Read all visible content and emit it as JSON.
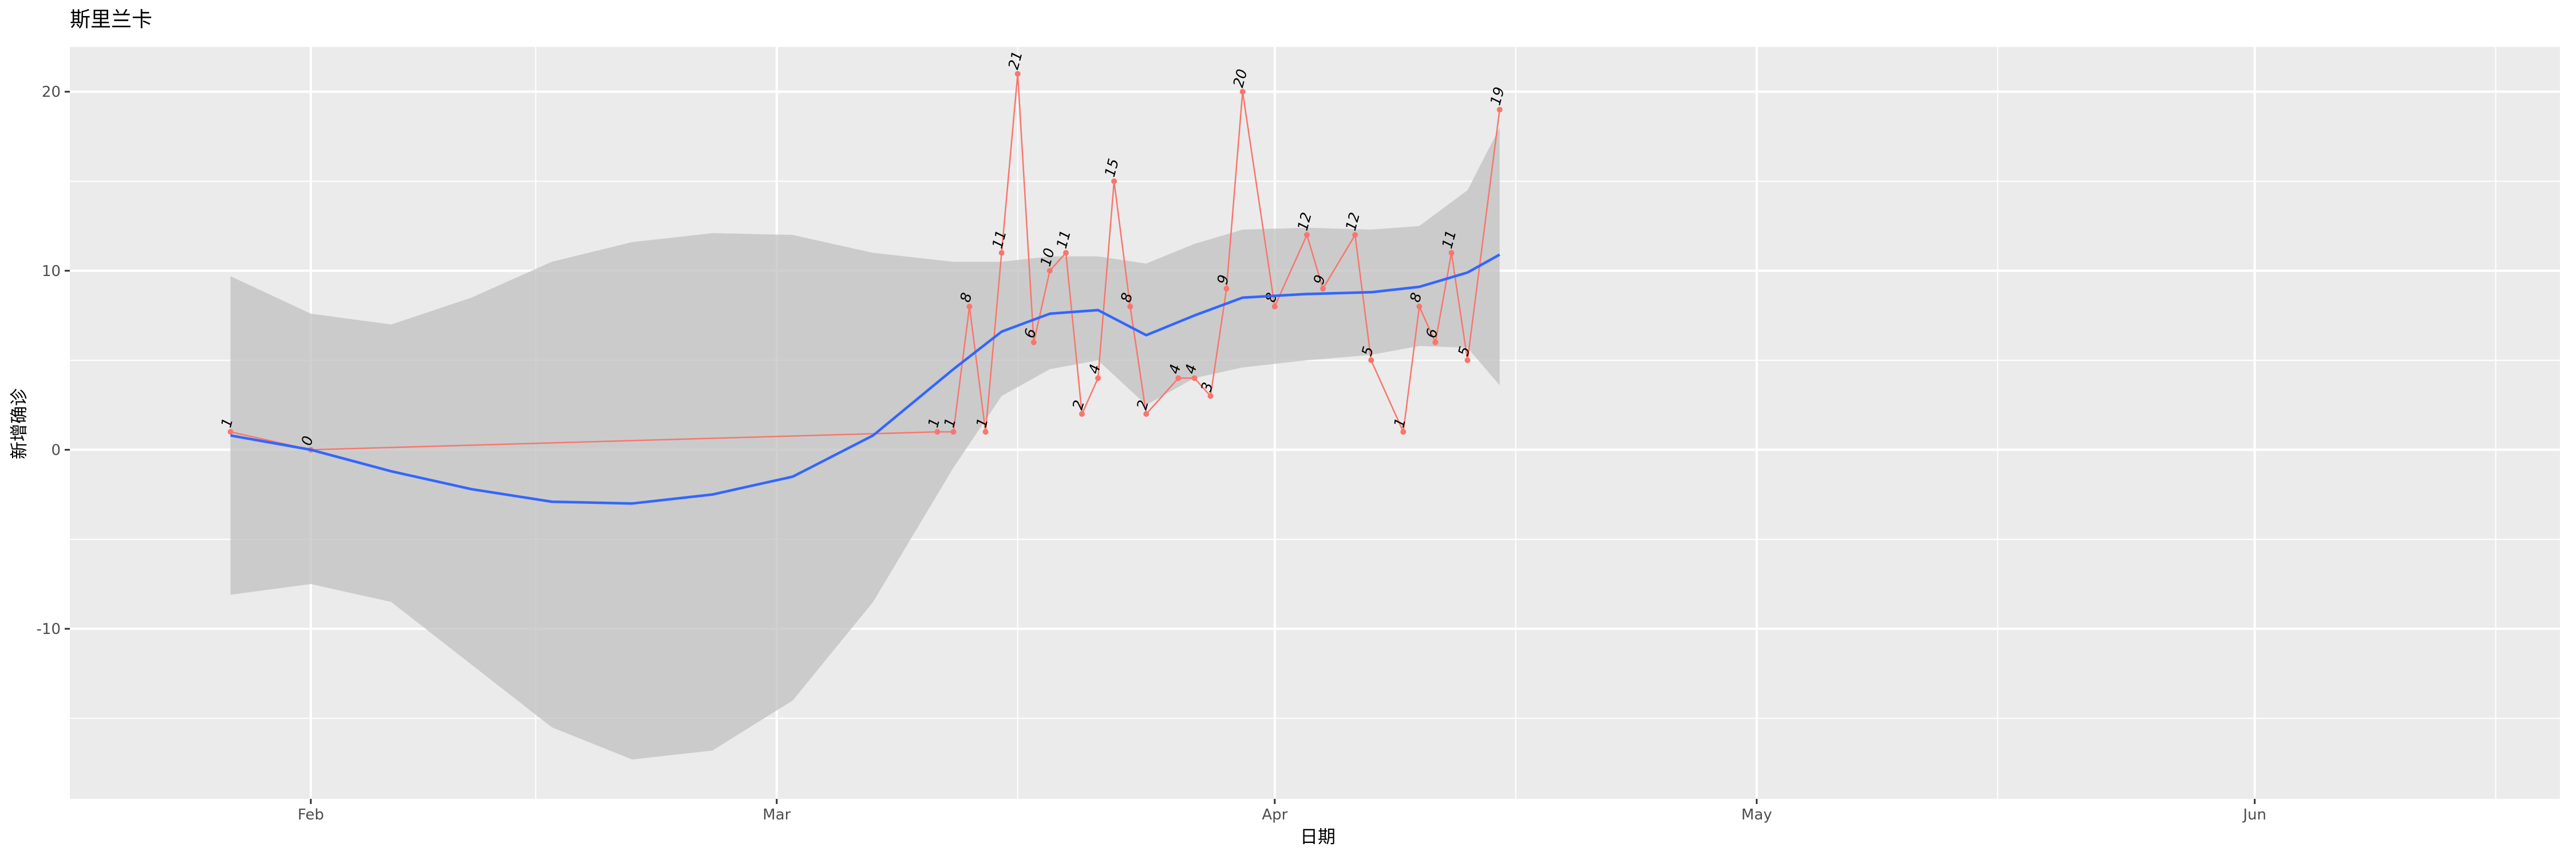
{
  "chart_data": {
    "type": "line",
    "title": "斯里兰卡",
    "xlabel": "日期",
    "ylabel": "新增确诊",
    "x_axis_type": "date",
    "xlim": [
      "2020-01-17",
      "2020-06-20"
    ],
    "ylim": [
      -19.5,
      22.5
    ],
    "x_ticks": [
      {
        "date": "2020-02-01",
        "label": "Feb"
      },
      {
        "date": "2020-03-01",
        "label": "Mar"
      },
      {
        "date": "2020-04-01",
        "label": "Apr"
      },
      {
        "date": "2020-05-01",
        "label": "May"
      },
      {
        "date": "2020-06-01",
        "label": "Jun"
      }
    ],
    "x_minor_grid": [
      "2020-01-16",
      "2020-02-15",
      "2020-03-16",
      "2020-04-16",
      "2020-05-16",
      "2020-06-16"
    ],
    "y_ticks": [
      -10,
      0,
      10,
      20
    ],
    "y_minor_grid": [
      -15,
      -5,
      5,
      15
    ],
    "grid": true,
    "background": "#ebebeb",
    "colors": {
      "points_line": "#f8766d",
      "smooth": "#3366ff",
      "ribbon": "#c0c0c0",
      "grid": "#ffffff"
    },
    "series": [
      {
        "values": [
          {
            "date": "2020-01-27",
            "y": 1
          },
          {
            "date": "2020-02-01",
            "y": 0
          },
          {
            "date": "2020-03-11",
            "y": 1
          },
          {
            "date": "2020-03-12",
            "y": 1
          },
          {
            "date": "2020-03-13",
            "y": 8
          },
          {
            "date": "2020-03-14",
            "y": 1
          },
          {
            "date": "2020-03-15",
            "y": 11
          },
          {
            "date": "2020-03-16",
            "y": 21
          },
          {
            "date": "2020-03-17",
            "y": 6
          },
          {
            "date": "2020-03-18",
            "y": 10
          },
          {
            "date": "2020-03-19",
            "y": 11
          },
          {
            "date": "2020-03-20",
            "y": 2
          },
          {
            "date": "2020-03-21",
            "y": 4
          },
          {
            "date": "2020-03-22",
            "y": 15
          },
          {
            "date": "2020-03-23",
            "y": 8
          },
          {
            "date": "2020-03-24",
            "y": 2
          },
          {
            "date": "2020-03-26",
            "y": 4
          },
          {
            "date": "2020-03-27",
            "y": 4
          },
          {
            "date": "2020-03-28",
            "y": 3
          },
          {
            "date": "2020-03-29",
            "y": 9
          },
          {
            "date": "2020-03-30",
            "y": 20
          },
          {
            "date": "2020-04-01",
            "y": 8
          },
          {
            "date": "2020-04-03",
            "y": 12
          },
          {
            "date": "2020-04-04",
            "y": 9
          },
          {
            "date": "2020-04-06",
            "y": 12
          },
          {
            "date": "2020-04-07",
            "y": 5
          },
          {
            "date": "2020-04-09",
            "y": 1
          },
          {
            "date": "2020-04-10",
            "y": 8
          },
          {
            "date": "2020-04-11",
            "y": 6
          },
          {
            "date": "2020-04-12",
            "y": 11
          },
          {
            "date": "2020-04-13",
            "y": 5
          },
          {
            "date": "2020-04-15",
            "y": 19
          }
        ]
      }
    ],
    "smooth_fit": [
      {
        "date": "2020-01-27",
        "y": 0.8,
        "lo": -8.1,
        "hi": 9.7
      },
      {
        "date": "2020-02-01",
        "y": 0.0,
        "lo": -7.5,
        "hi": 7.6
      },
      {
        "date": "2020-02-06",
        "y": -1.2,
        "lo": -8.5,
        "hi": 7.0
      },
      {
        "date": "2020-02-11",
        "y": -2.2,
        "lo": -12.0,
        "hi": 8.5
      },
      {
        "date": "2020-02-16",
        "y": -2.9,
        "lo": -15.5,
        "hi": 10.5
      },
      {
        "date": "2020-02-21",
        "y": -3.0,
        "lo": -17.3,
        "hi": 11.6
      },
      {
        "date": "2020-02-26",
        "y": -2.5,
        "lo": -16.8,
        "hi": 12.1
      },
      {
        "date": "2020-03-02",
        "y": -1.5,
        "lo": -14.0,
        "hi": 12.0
      },
      {
        "date": "2020-03-07",
        "y": 0.8,
        "lo": -8.5,
        "hi": 11.0
      },
      {
        "date": "2020-03-12",
        "y": 4.5,
        "lo": -1.0,
        "hi": 10.5
      },
      {
        "date": "2020-03-15",
        "y": 6.6,
        "lo": 3.0,
        "hi": 10.5
      },
      {
        "date": "2020-03-18",
        "y": 7.6,
        "lo": 4.5,
        "hi": 10.8
      },
      {
        "date": "2020-03-21",
        "y": 7.8,
        "lo": 5.0,
        "hi": 10.8
      },
      {
        "date": "2020-03-24",
        "y": 6.4,
        "lo": 2.5,
        "hi": 10.4
      },
      {
        "date": "2020-03-27",
        "y": 7.5,
        "lo": 4.0,
        "hi": 11.5
      },
      {
        "date": "2020-03-30",
        "y": 8.5,
        "lo": 4.6,
        "hi": 12.3
      },
      {
        "date": "2020-04-03",
        "y": 8.7,
        "lo": 5.0,
        "hi": 12.4
      },
      {
        "date": "2020-04-07",
        "y": 8.8,
        "lo": 5.3,
        "hi": 12.3
      },
      {
        "date": "2020-04-10",
        "y": 9.1,
        "lo": 5.8,
        "hi": 12.5
      },
      {
        "date": "2020-04-13",
        "y": 9.9,
        "lo": 5.7,
        "hi": 14.5
      },
      {
        "date": "2020-04-15",
        "y": 10.9,
        "lo": 3.6,
        "hi": 18.0
      }
    ]
  }
}
